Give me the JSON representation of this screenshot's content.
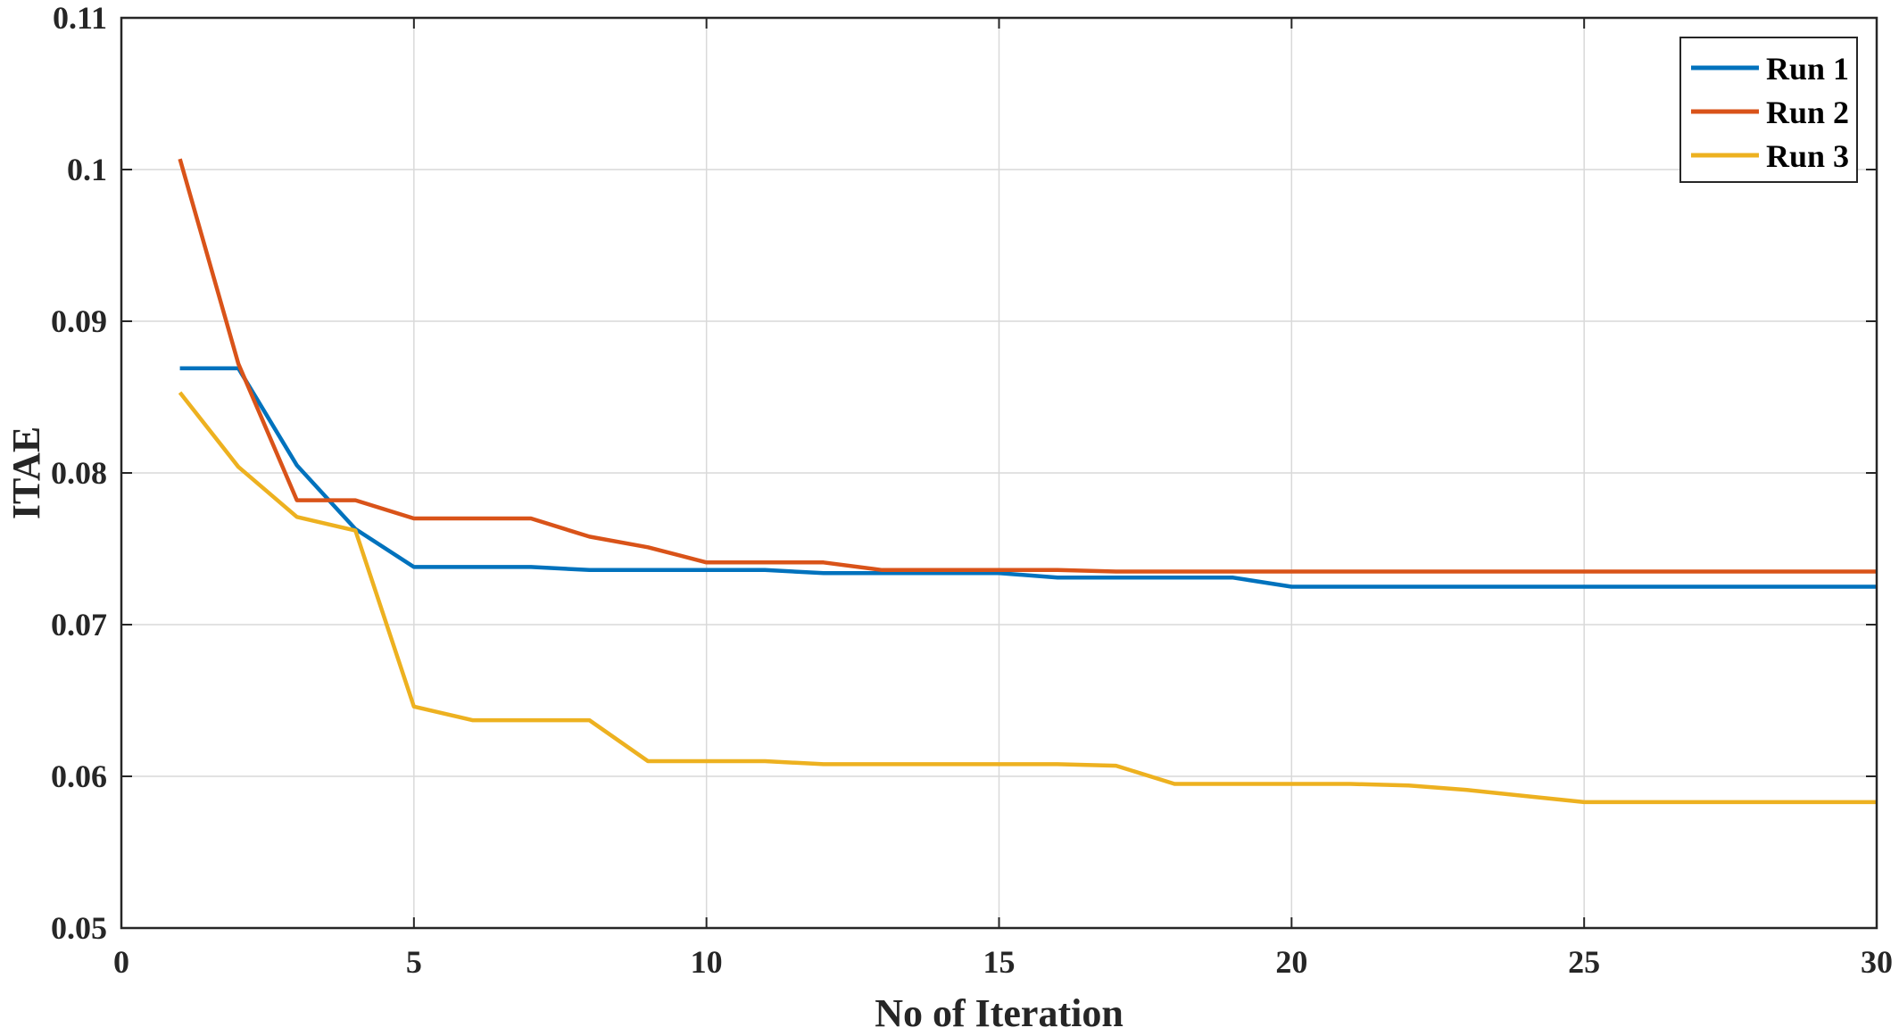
{
  "chart_data": {
    "type": "line",
    "xlabel": "No of Iteration",
    "ylabel": "ITAE",
    "xlim": [
      0,
      30
    ],
    "ylim": [
      0.05,
      0.11
    ],
    "xticks": [
      0,
      5,
      10,
      15,
      20,
      25,
      30
    ],
    "xtick_labels": [
      "0",
      "5",
      "10",
      "15",
      "20",
      "25",
      "30"
    ],
    "yticks": [
      0.05,
      0.06,
      0.07,
      0.08,
      0.09,
      0.1,
      0.11
    ],
    "ytick_labels": [
      "0.05",
      "0.06",
      "0.07",
      "0.08",
      "0.09",
      "0.1",
      "0.11"
    ],
    "grid": true,
    "legend_position": "top-right",
    "x": [
      1,
      2,
      3,
      4,
      5,
      6,
      7,
      8,
      9,
      10,
      11,
      12,
      13,
      14,
      15,
      16,
      17,
      18,
      19,
      20,
      21,
      22,
      23,
      24,
      25,
      26,
      27,
      28,
      29,
      30
    ],
    "series": [
      {
        "name": "Run 1",
        "color": "#0072BD",
        "values": [
          0.0869,
          0.0869,
          0.0805,
          0.0763,
          0.0738,
          0.0738,
          0.0738,
          0.0736,
          0.0736,
          0.0736,
          0.0736,
          0.0734,
          0.0734,
          0.0734,
          0.0734,
          0.0731,
          0.0731,
          0.0731,
          0.0731,
          0.0725,
          0.0725,
          0.0725,
          0.0725,
          0.0725,
          0.0725,
          0.0725,
          0.0725,
          0.0725,
          0.0725,
          0.0725
        ]
      },
      {
        "name": "Run 2",
        "color": "#D95319",
        "values": [
          0.1007,
          0.0872,
          0.0782,
          0.0782,
          0.077,
          0.077,
          0.077,
          0.0758,
          0.0751,
          0.0741,
          0.0741,
          0.0741,
          0.0736,
          0.0736,
          0.0736,
          0.0736,
          0.0735,
          0.0735,
          0.0735,
          0.0735,
          0.0735,
          0.0735,
          0.0735,
          0.0735,
          0.0735,
          0.0735,
          0.0735,
          0.0735,
          0.0735,
          0.0735
        ]
      },
      {
        "name": "Run 3",
        "color": "#EDB120",
        "values": [
          0.0853,
          0.0804,
          0.0771,
          0.0762,
          0.0646,
          0.0637,
          0.0637,
          0.0637,
          0.061,
          0.061,
          0.061,
          0.0608,
          0.0608,
          0.0608,
          0.0608,
          0.0608,
          0.0607,
          0.0595,
          0.0595,
          0.0595,
          0.0595,
          0.0594,
          0.0591,
          0.0587,
          0.0583,
          0.0583,
          0.0583,
          0.0583,
          0.0583,
          0.0583
        ]
      }
    ]
  }
}
